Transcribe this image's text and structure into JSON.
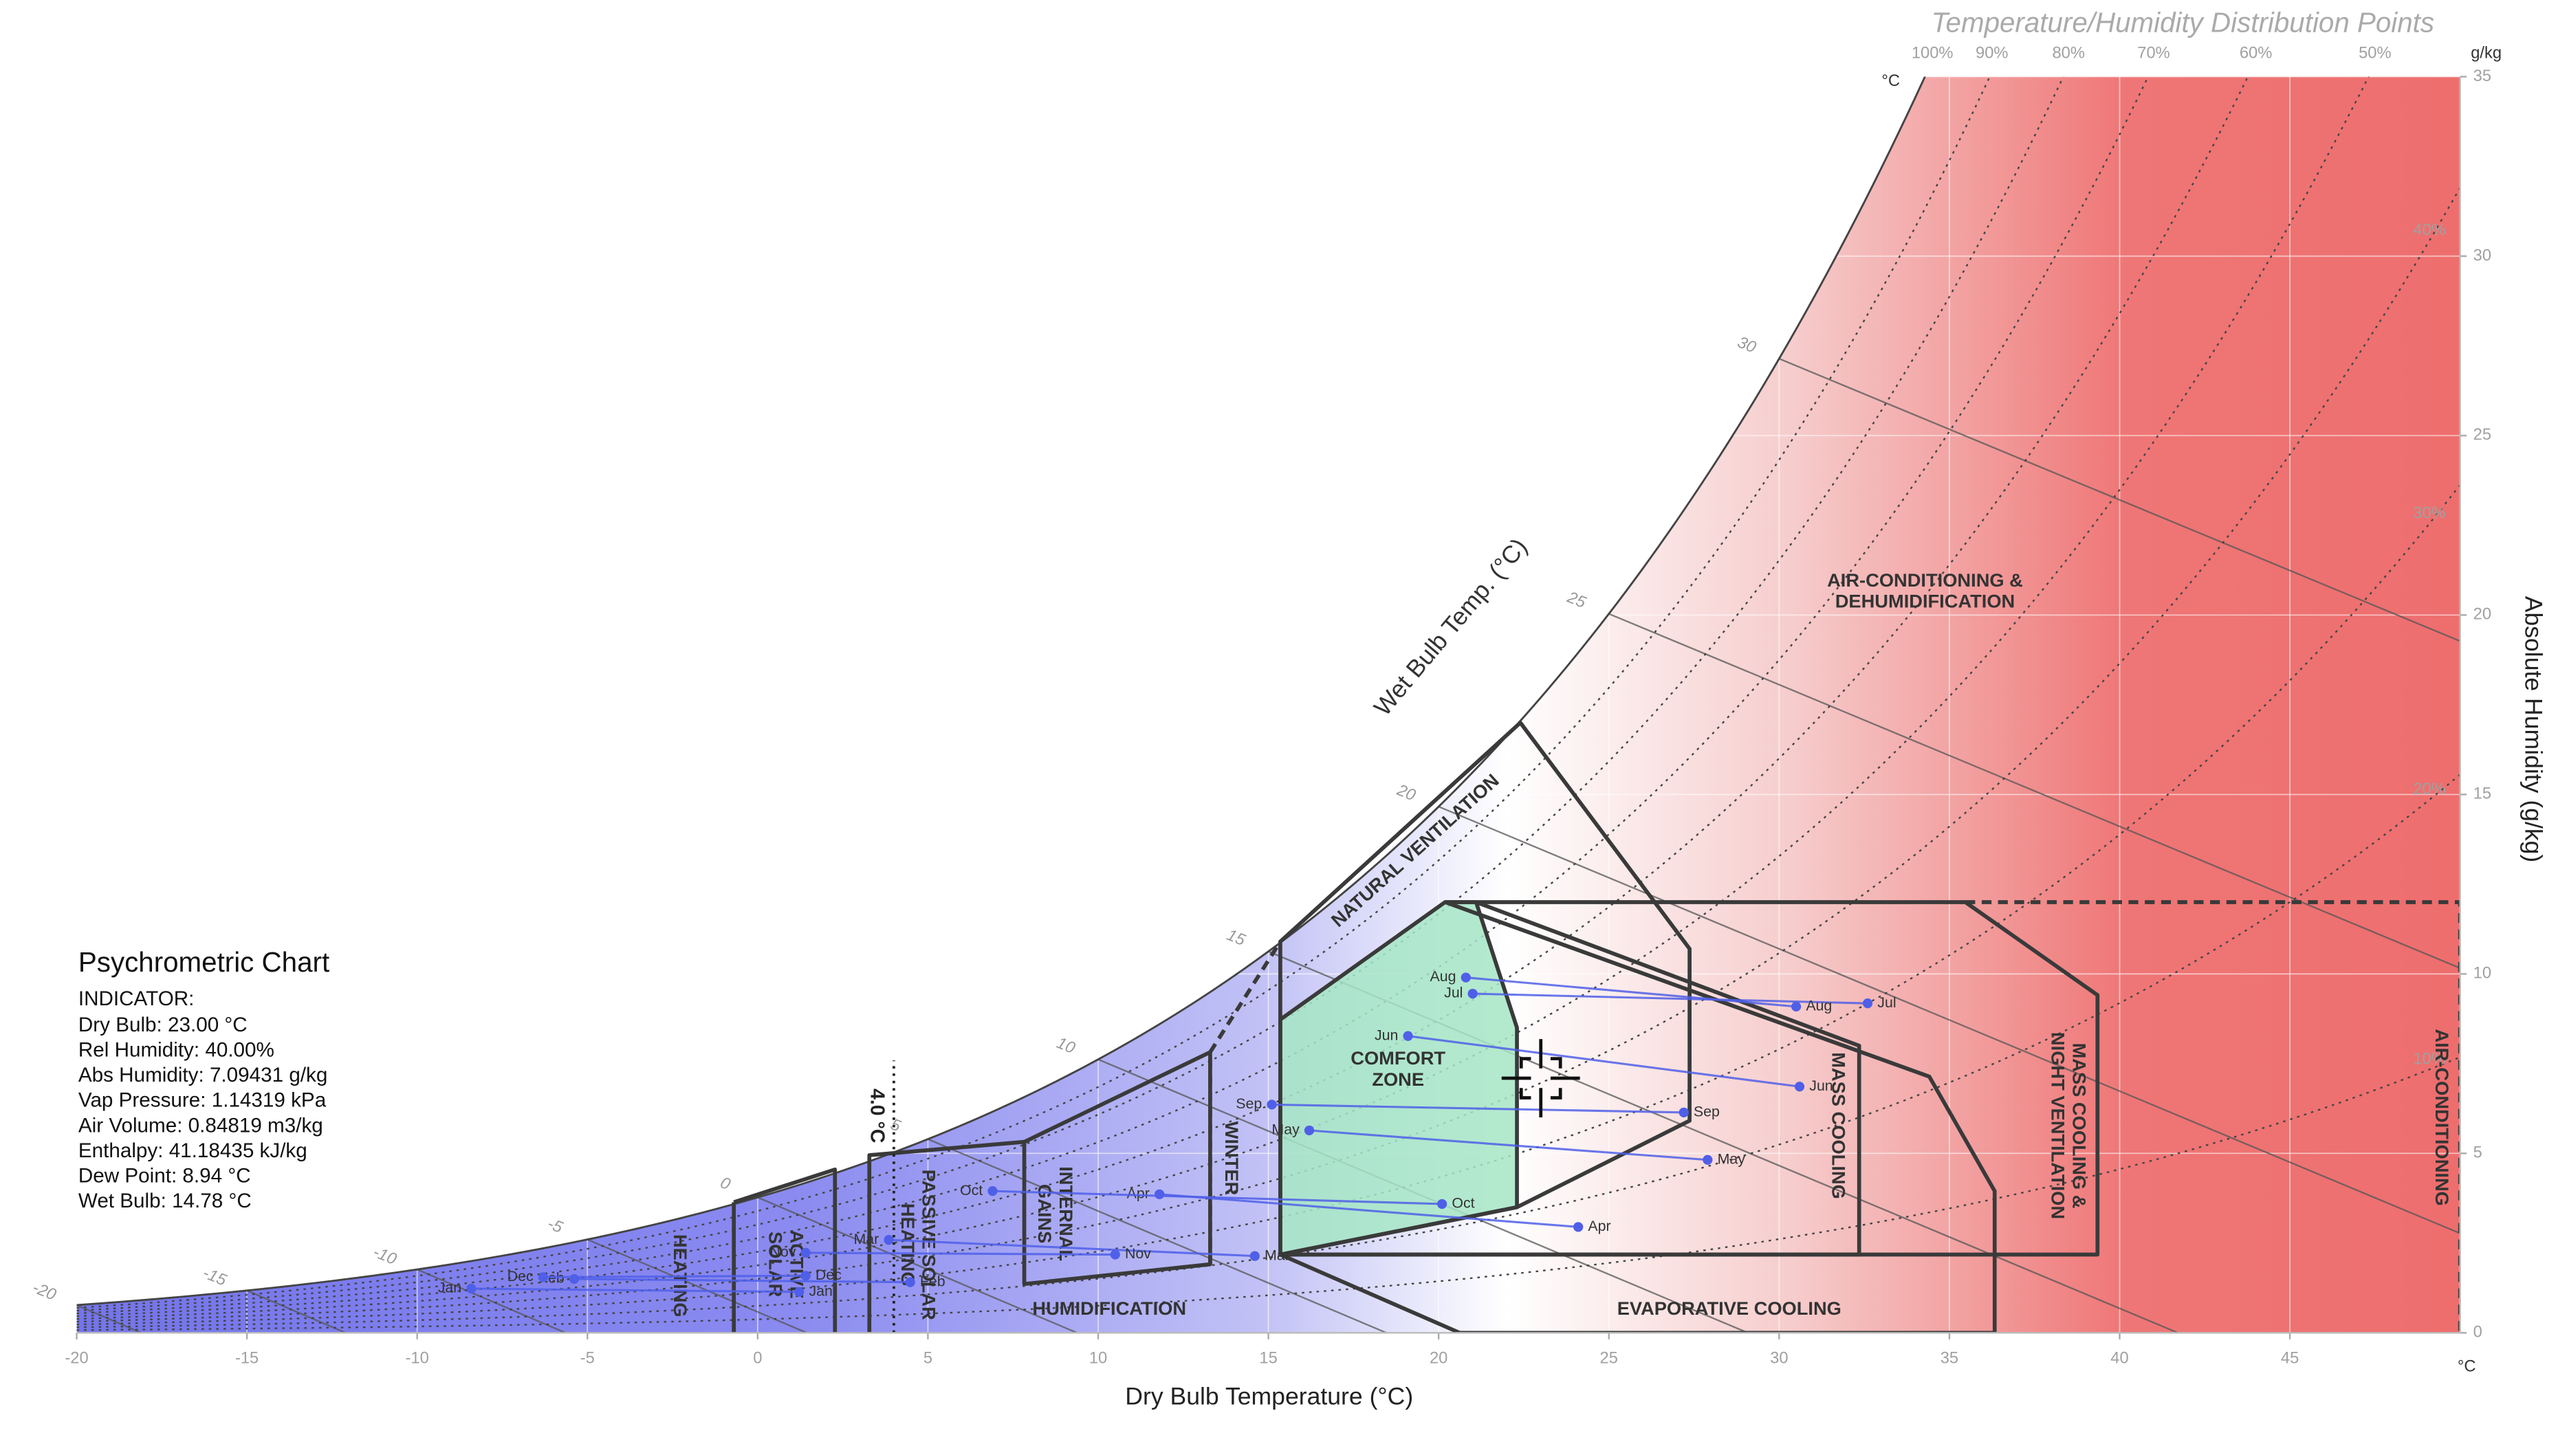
{
  "chart_data": {
    "type": "psychrometric",
    "title": "Temperature/Humidity Distribution Points",
    "x_label": "Dry Bulb Temperature (°C)",
    "y_label": "Absolute Humidity (g/kg)",
    "x_unit": "°C",
    "y_unit": "g/kg",
    "top_unit": "°C",
    "xlim": [
      -20,
      50
    ],
    "xticks": [
      -20,
      -15,
      -10,
      -5,
      0,
      5,
      10,
      15,
      20,
      25,
      30,
      35,
      40,
      45
    ],
    "ylim": [
      0,
      35
    ],
    "yticks": [
      0,
      5,
      10,
      15,
      20,
      25,
      30,
      35
    ],
    "grid": true,
    "rh_curves": [
      {
        "value": 100,
        "label": "100%"
      },
      {
        "value": 90,
        "label": "90%"
      },
      {
        "value": 80,
        "label": "80%"
      },
      {
        "value": 70,
        "label": "70%"
      },
      {
        "value": 60,
        "label": "60%"
      },
      {
        "value": 50,
        "label": "50%"
      },
      {
        "value": 40,
        "label": "40%"
      },
      {
        "value": 30,
        "label": "30%"
      },
      {
        "value": 20,
        "label": "20%"
      },
      {
        "value": 10,
        "label": "10%"
      }
    ],
    "wet_bulb": {
      "label": "Wet Bulb Temp. (°C)",
      "ticks": [
        -20,
        -15,
        -10,
        -5,
        0,
        5,
        10,
        15,
        20,
        25,
        30
      ]
    },
    "winter_line": {
      "value": 4.0,
      "label": "4.0 °C"
    },
    "zones": [
      {
        "label": [
          "HEATING"
        ],
        "points": [
          [
            -0.7,
            0
          ],
          [
            -0.7,
            3.64
          ]
        ]
      },
      {
        "label": [
          "ACTIVE",
          "SOLAR"
        ],
        "points": [
          [
            -0.7,
            3.64
          ],
          [
            2.27,
            4.55
          ],
          [
            2.27,
            0
          ]
        ]
      },
      {
        "label": [
          "PASSIVE SOLAR",
          "HEATING"
        ],
        "points": [
          [
            3.28,
            0
          ],
          [
            3.28,
            4.95
          ],
          [
            7.83,
            5.32
          ]
        ]
      },
      {
        "label": [
          "INTERNAL",
          "GAINS"
        ],
        "points": [
          [
            7.83,
            1.36
          ],
          [
            7.83,
            5.32
          ],
          [
            13.29,
            7.82
          ],
          [
            13.29,
            1.91
          ]
        ],
        "closed": true
      },
      {
        "label": [
          "WINTER"
        ],
        "points": [
          [
            13.29,
            1.91
          ],
          [
            13.29,
            7.82
          ],
          [
            15.35,
            10.9
          ]
        ],
        "dashed": true
      },
      {
        "label": [
          "COMFORT",
          "ZONE"
        ],
        "points": [
          [
            15.35,
            2.18
          ],
          [
            15.35,
            8.73
          ],
          [
            20.19,
            12.0
          ],
          [
            21.1,
            12.0
          ],
          [
            22.3,
            8.5
          ],
          [
            22.3,
            3.5
          ]
        ],
        "closed": true,
        "fill": "#a6e6c6"
      },
      {
        "label": [
          "NATURAL VENTILATION"
        ],
        "points": [
          [
            15.35,
            2.18
          ],
          [
            15.35,
            10.9
          ],
          [
            22.4,
            17.0
          ],
          [
            27.37,
            10.7
          ],
          [
            27.37,
            5.91
          ],
          [
            22.3,
            3.5
          ]
        ],
        "closed": true
      },
      {
        "label": [
          "MASS COOLING"
        ],
        "points": [
          [
            21.1,
            12.0
          ],
          [
            32.35,
            8.0
          ],
          [
            32.35,
            2.18
          ],
          [
            15.35,
            2.18
          ]
        ]
      },
      {
        "label": [
          "MASS COOLING &",
          "NIGHT VENTILATION"
        ],
        "points": [
          [
            20.19,
            12.0
          ],
          [
            35.47,
            12.0
          ],
          [
            39.35,
            9.41
          ],
          [
            39.35,
            2.18
          ],
          [
            15.35,
            2.18
          ]
        ]
      },
      {
        "label": [
          "EVAPORATIVE COOLING"
        ],
        "points": [
          [
            15.35,
            2.18
          ],
          [
            20.62,
            0
          ],
          [
            36.33,
            0
          ],
          [
            36.33,
            3.95
          ],
          [
            34.41,
            7.14
          ],
          [
            20.19,
            12.0
          ]
        ]
      },
      {
        "label": [
          "AIR-CONDITIONING"
        ],
        "points": [
          [
            35.47,
            12.0
          ],
          [
            50,
            12.0
          ],
          [
            50,
            0
          ]
        ],
        "dashed": true
      },
      {
        "label": [
          "AIR-CONDITIONING &",
          "DEHUMIDIFICATION"
        ]
      },
      {
        "label": [
          "HUMIDIFICATION"
        ]
      }
    ],
    "month_color": "#4f5fe8",
    "months": [
      {
        "name": "Jan",
        "x": [
          -8.41,
          1.22
        ],
        "y": [
          1.23,
          1.14
        ]
      },
      {
        "name": "Feb",
        "x": [
          -5.39,
          4.48
        ],
        "y": [
          1.5,
          1.41
        ]
      },
      {
        "name": "Mar",
        "x": [
          3.85,
          14.6
        ],
        "y": [
          2.59,
          2.14
        ]
      },
      {
        "name": "Apr",
        "x": [
          11.8,
          24.1
        ],
        "y": [
          3.86,
          2.95
        ]
      },
      {
        "name": "May",
        "x": [
          16.2,
          27.9
        ],
        "y": [
          5.64,
          4.82
        ]
      },
      {
        "name": "Jun",
        "x": [
          19.1,
          30.6
        ],
        "y": [
          8.27,
          6.86
        ]
      },
      {
        "name": "Jul",
        "x": [
          21.0,
          32.6
        ],
        "y": [
          9.45,
          9.18
        ]
      },
      {
        "name": "Aug",
        "x": [
          20.8,
          30.5
        ],
        "y": [
          9.9,
          9.09
        ]
      },
      {
        "name": "Sep",
        "x": [
          15.1,
          27.2
        ],
        "y": [
          6.36,
          6.14
        ]
      },
      {
        "name": "Oct",
        "x": [
          6.9,
          20.1
        ],
        "y": [
          3.95,
          3.59
        ]
      },
      {
        "name": "Nov",
        "x": [
          1.41,
          10.5
        ],
        "y": [
          2.23,
          2.18
        ]
      },
      {
        "name": "Dec",
        "x": [
          -6.3,
          1.41
        ],
        "y": [
          1.55,
          1.59
        ]
      }
    ]
  },
  "indicator": {
    "title": "Psychrometric Chart",
    "heading": "INDICATOR:",
    "dry_bulb": 23.0,
    "abs_humidity": 7.09431,
    "lines": [
      "Dry Bulb: 23.00 °C",
      "Rel Humidity: 40.00%",
      "Abs Humidity: 7.09431 g/kg",
      "Vap Pressure: 1.14319 kPa",
      "Air Volume: 0.84819 m3/kg",
      "Enthalpy: 41.18435 kJ/kg",
      "Dew Point: 8.94 °C",
      "Wet Bulb: 14.78 °C"
    ]
  }
}
